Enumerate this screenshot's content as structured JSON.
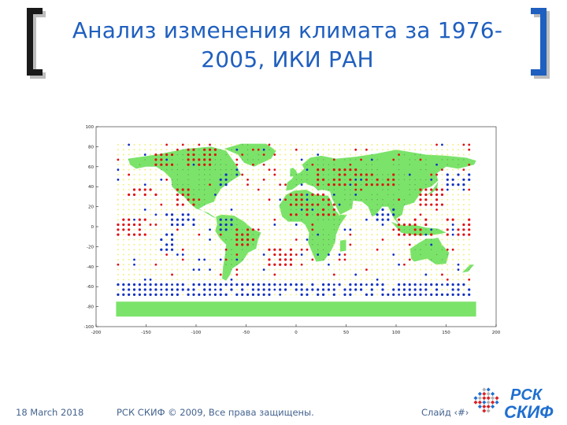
{
  "slide": {
    "title_line1": "Анализ изменения климата за 1976-",
    "title_line2": "2005, ИКИ РАН"
  },
  "figure": {
    "y_ticks": [
      "100",
      "80",
      "60",
      "40",
      "20",
      "0",
      "-20",
      "-40",
      "-60",
      "-80",
      "-100"
    ],
    "x_ticks": [
      "-200",
      "-150",
      "-100",
      "-50",
      "0",
      "50",
      "100",
      "150",
      "200"
    ],
    "colors": {
      "land": "#7be36a",
      "ocean": "#ffffff",
      "warming_dot": "#e01010",
      "cooling_dot": "#1030c0",
      "neutral_dot": "#f2f080",
      "antarctica": "#7be36a"
    },
    "ylim": [
      -100,
      100
    ],
    "xlim": [
      -200,
      200
    ]
  },
  "footer": {
    "date": "18 March 2018",
    "copyright": "РСК СКИФ © 2009, Все права защищены.",
    "slide_label": "Слайд ‹#›"
  },
  "logo": {
    "line1": "РСК",
    "line2": "СКИФ",
    "color": "#1f6fd0",
    "mark_red": "#d8232a",
    "mark_blue": "#1f6fd0",
    "mark_gray": "#b0b0b0"
  },
  "accent": "#1f5fbf"
}
